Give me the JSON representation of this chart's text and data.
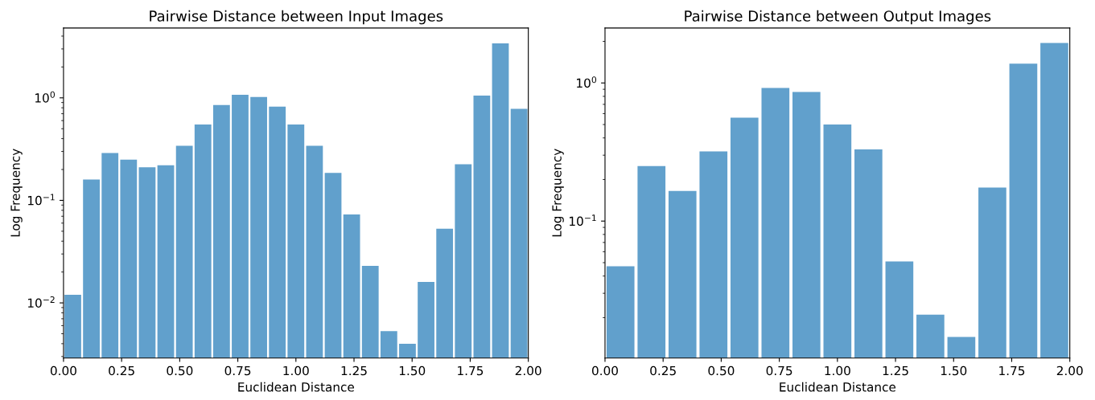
{
  "chart_data": [
    {
      "type": "histogram",
      "title": "Pairwise Distance between Input Images",
      "xlabel": "Euclidean Distance",
      "ylabel": "Log Frequency",
      "color": "#61a0cc",
      "log": "y",
      "grid": false,
      "legend": false,
      "bins": [
        0,
        0.08,
        0.16,
        0.24,
        0.32,
        0.4,
        0.48,
        0.56,
        0.64,
        0.72,
        0.8,
        0.88,
        0.96,
        1.04,
        1.12,
        1.2,
        1.28,
        1.36,
        1.44,
        1.52,
        1.6,
        1.68,
        1.76,
        1.84,
        1.92,
        2.0
      ],
      "values": [
        0.012,
        0.16,
        0.29,
        0.25,
        0.21,
        0.22,
        0.34,
        0.55,
        0.85,
        1.07,
        1.02,
        0.82,
        0.55,
        0.34,
        0.185,
        0.073,
        0.023,
        0.0053,
        0.004,
        0.016,
        0.053,
        0.225,
        1.05,
        3.4,
        0.78
      ],
      "xlim": [
        0,
        2
      ],
      "xticks": [
        {
          "value": 0,
          "label": "0.00"
        },
        {
          "value": 0.25,
          "label": "0.25"
        },
        {
          "value": 0.5,
          "label": "0.50"
        },
        {
          "value": 0.75,
          "label": "0.75"
        },
        {
          "value": 1,
          "label": "1.00"
        },
        {
          "value": 1.25,
          "label": "1.25"
        },
        {
          "value": 1.5,
          "label": "1.50"
        },
        {
          "value": 1.75,
          "label": "1.75"
        },
        {
          "value": 2,
          "label": "2.00"
        }
      ],
      "ylim": [
        0.0029,
        4.8
      ],
      "yticks": [
        {
          "value": 0.01,
          "label": "10$^{−2}$"
        },
        {
          "value": 0.1,
          "label": "10$^{−1}$"
        },
        {
          "value": 1,
          "label": "10$^{0}$"
        }
      ]
    },
    {
      "type": "histogram",
      "title": "Pairwise Distance between Output Images",
      "xlabel": "Euclidean Distance",
      "ylabel": "Log Frequency",
      "color": "#61a0cc",
      "log": "y",
      "grid": false,
      "legend": false,
      "bins": [
        0,
        0.1333,
        0.2667,
        0.4,
        0.5333,
        0.6667,
        0.8,
        0.9333,
        1.0667,
        1.2,
        1.3333,
        1.4667,
        1.6,
        1.7333,
        1.8667,
        2.0
      ],
      "values": [
        0.047,
        0.25,
        0.165,
        0.32,
        0.56,
        0.92,
        0.86,
        0.5,
        0.33,
        0.051,
        0.021,
        0.0145,
        0.175,
        1.38,
        1.95
      ],
      "xlim": [
        0,
        2
      ],
      "xticks": [
        {
          "value": 0,
          "label": "0.00"
        },
        {
          "value": 0.25,
          "label": "0.25"
        },
        {
          "value": 0.5,
          "label": "0.50"
        },
        {
          "value": 0.75,
          "label": "0.75"
        },
        {
          "value": 1,
          "label": "1.00"
        },
        {
          "value": 1.25,
          "label": "1.25"
        },
        {
          "value": 1.5,
          "label": "1.50"
        },
        {
          "value": 1.75,
          "label": "1.75"
        },
        {
          "value": 2,
          "label": "2.00"
        }
      ],
      "ylim": [
        0.0102,
        2.5
      ],
      "yticks": [
        {
          "value": 0.1,
          "label": "10$^{−1}$"
        },
        {
          "value": 1,
          "label": "10$^{0}$"
        }
      ]
    }
  ]
}
